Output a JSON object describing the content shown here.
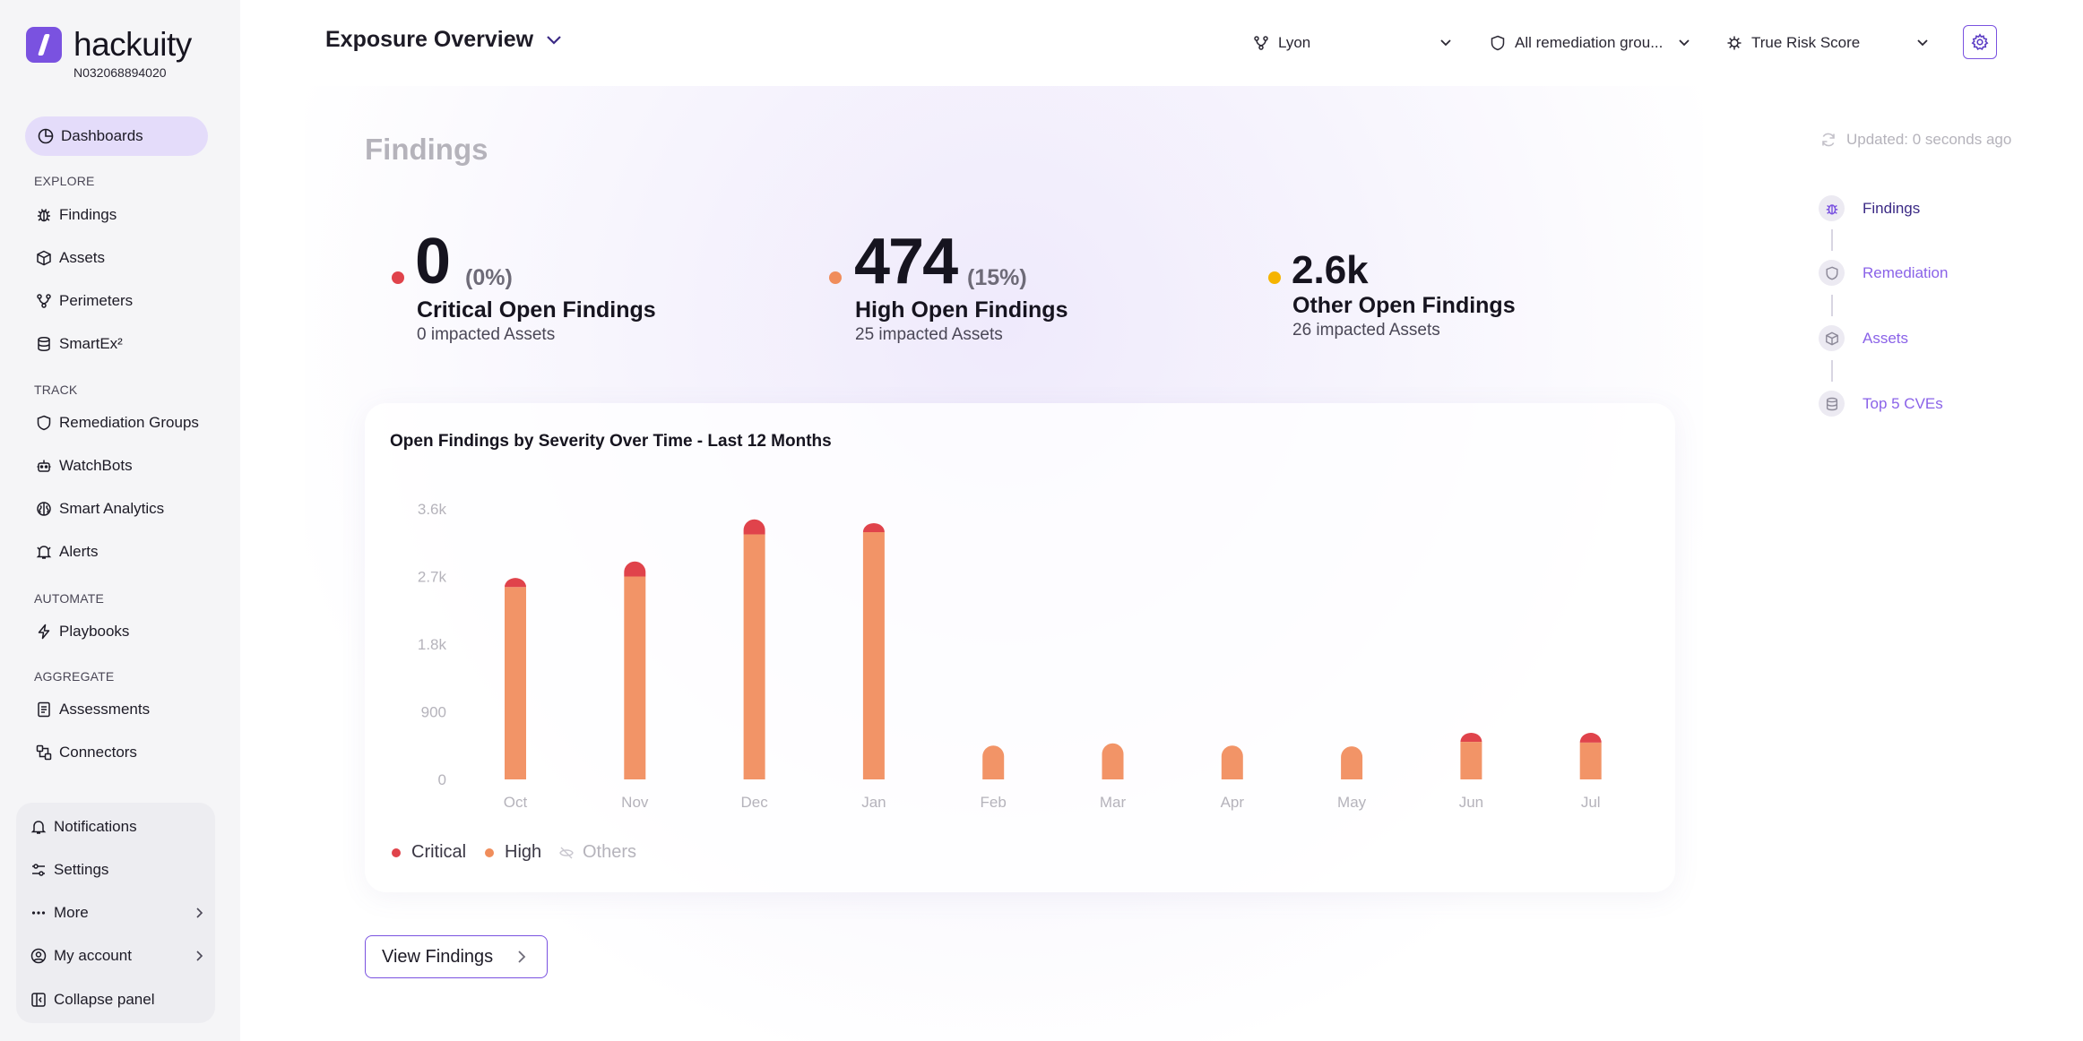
{
  "brand": {
    "name": "hackuity",
    "org_id": "N032068894020",
    "accent": "#7a52e0"
  },
  "sidebar": {
    "active": {
      "label": "Dashboards",
      "icon": "dashboard-icon"
    },
    "sections": {
      "explore": "EXPLORE",
      "track": "TRACK",
      "automate": "AUTOMATE",
      "aggregate": "AGGREGATE"
    },
    "items": {
      "findings": "Findings",
      "assets": "Assets",
      "perimeters": "Perimeters",
      "smartex": "SmartEx²",
      "remediation_groups": "Remediation Groups",
      "watchbots": "WatchBots",
      "smart_analytics": "Smart Analytics",
      "alerts": "Alerts",
      "playbooks": "Playbooks",
      "assessments": "Assessments",
      "connectors": "Connectors"
    },
    "bottom": {
      "notifications": "Notifications",
      "settings": "Settings",
      "more": "More",
      "my_account": "My account",
      "collapse": "Collapse panel"
    }
  },
  "header": {
    "title": "Exposure Overview",
    "filters": {
      "perimeter": "Lyon",
      "remediation_group": "All remediation grou...",
      "score": "True Risk Score"
    }
  },
  "main": {
    "title": "Findings",
    "updated": "Updated: 0 seconds ago",
    "stats": {
      "critical": {
        "value": "0",
        "pct": "(0%)",
        "label": "Critical Open Findings",
        "sub": "0 impacted Assets",
        "color": "#e0434b"
      },
      "high": {
        "value": "474",
        "pct": "(15%)",
        "label": "High Open Findings",
        "sub": "25 impacted Assets",
        "color": "#f08d5b"
      },
      "other": {
        "value": "2.6k",
        "label": "Other Open Findings",
        "sub": "26 impacted Assets",
        "color": "#f5b400"
      }
    },
    "view_button": "View Findings"
  },
  "stepper": {
    "findings": "Findings",
    "remediation": "Remediation",
    "assets": "Assets",
    "top_cves": "Top 5 CVEs"
  },
  "chart_data": {
    "type": "bar",
    "title": "Open Findings by Severity Over Time - Last 12 Months",
    "categories": [
      "Oct",
      "Nov",
      "Dec",
      "Jan",
      "Feb",
      "Mar",
      "Apr",
      "May",
      "Jun",
      "Jul"
    ],
    "y_ticks": [
      "0",
      "900",
      "1.8k",
      "2.7k",
      "3.6k"
    ],
    "ylim": [
      0,
      3600
    ],
    "stacked": true,
    "series": [
      {
        "name": "High",
        "color": "#f29467",
        "values": [
          2560,
          2700,
          3260,
          3290,
          450,
          480,
          450,
          440,
          500,
          490
        ]
      },
      {
        "name": "Critical",
        "color": "#e0434b",
        "values": [
          120,
          200,
          200,
          120,
          0,
          0,
          0,
          0,
          120,
          130
        ]
      }
    ],
    "legend": [
      {
        "name": "Critical",
        "color": "#e0434b",
        "hidden": false
      },
      {
        "name": "High",
        "color": "#f08d5b",
        "hidden": false
      },
      {
        "name": "Others",
        "color": "#c9c7cf",
        "hidden": true
      }
    ],
    "legend_position": "bottom-left",
    "grid": false
  }
}
